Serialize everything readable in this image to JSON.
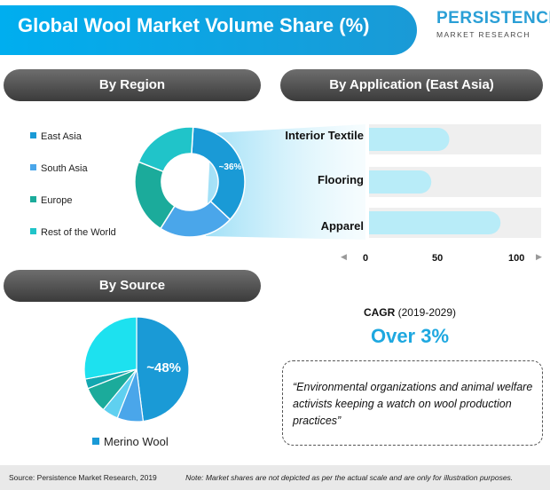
{
  "header": {
    "title": "Global Wool Market Volume Share (%)",
    "logo_main": "PERSISTENCE",
    "logo_sub": "MARKET RESEARCH"
  },
  "sections": {
    "region": "By Region",
    "application": "By Application (East Asia)",
    "source": "By Source"
  },
  "colors": {
    "primary_blue": "#1ea8e0",
    "dark_pill": "#4a4a4a",
    "light_blue_bar": "#b8ecf8"
  },
  "chart_data": [
    {
      "type": "pie",
      "title": "By Region",
      "donut": true,
      "legend": [
        "East Asia",
        "South Asia",
        "Europe",
        "Rest of the World"
      ],
      "legend_position": "left",
      "slices": [
        {
          "name": "East Asia",
          "value": 36,
          "color": "#1a9ad6",
          "label": "~36%"
        },
        {
          "name": "South Asia",
          "value": 22,
          "color": "#4aa6ea",
          "label": ""
        },
        {
          "name": "Europe",
          "value": 22,
          "color": "#1bab9b",
          "label": ""
        },
        {
          "name": "Rest of the World",
          "value": 20,
          "color": "#20c4c9",
          "label": ""
        }
      ]
    },
    {
      "type": "bar",
      "orientation": "horizontal",
      "title": "By Application (East Asia)",
      "categories": [
        "Interior Textile",
        "Flooring",
        "Apparel"
      ],
      "values": [
        58,
        45,
        95
      ],
      "xlim": [
        0,
        100
      ],
      "xticks": [
        "0",
        "50",
        "100"
      ],
      "grid": false
    },
    {
      "type": "pie",
      "title": "By Source",
      "legend": [
        "Merino Wool"
      ],
      "legend_position": "bottom",
      "slices": [
        {
          "name": "Merino Wool",
          "value": 48,
          "color": "#1a9ad6",
          "label": "~48%"
        },
        {
          "name": "",
          "value": 8,
          "color": "#4aa6ea",
          "label": ""
        },
        {
          "name": "",
          "value": 5,
          "color": "#5fd0f0",
          "label": ""
        },
        {
          "name": "",
          "value": 8,
          "color": "#1bab9b",
          "label": ""
        },
        {
          "name": "",
          "value": 3,
          "color": "#12a7b0",
          "label": ""
        },
        {
          "name": "",
          "value": 28,
          "color": "#1de1ef",
          "label": ""
        }
      ]
    }
  ],
  "cagr": {
    "label": "CAGR",
    "period": "(2019-2029)",
    "value": "Over 3%"
  },
  "quote": "“Environmental organizations and animal welfare activists keeping a watch on wool production practices”",
  "footer": {
    "source": "Source: Persistence Market Research, 2019",
    "note": "Note: Market shares are not depicted as per the actual scale and are only for illustration purposes."
  }
}
